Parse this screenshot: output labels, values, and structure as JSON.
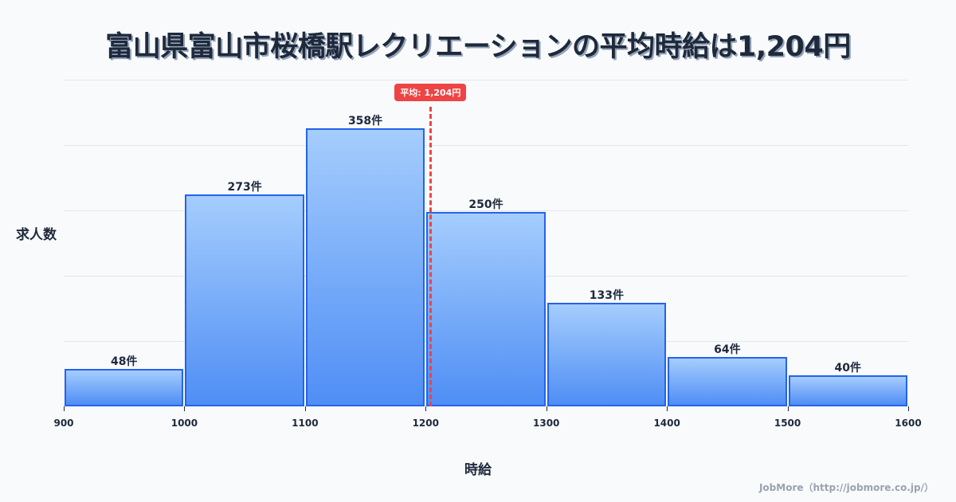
{
  "title": "富山県富山市桜橋駅レクリエーションの平均時給は1,204円",
  "y_axis_label": "求人数",
  "x_axis_label": "時給",
  "mean_badge": "平均: 1,204円",
  "footer": "JobMore（http://jobmore.co.jp/）",
  "colors": {
    "bar_top": "#a5cdfd",
    "bar_bottom": "#4f8ef5",
    "bar_border": "#2563eb",
    "mean_line": "#ef4444",
    "text": "#1e293b",
    "background": "#f8fafc"
  },
  "chart_data": {
    "type": "bar",
    "title": "富山県富山市桜橋駅レクリエーションの平均時給は1,204円",
    "xlabel": "時給",
    "ylabel": "求人数",
    "bins": [
      [
        900,
        1000
      ],
      [
        1000,
        1100
      ],
      [
        1100,
        1200
      ],
      [
        1200,
        1300
      ],
      [
        1300,
        1400
      ],
      [
        1400,
        1500
      ],
      [
        1500,
        1600
      ]
    ],
    "categories": [
      "900-1000",
      "1000-1100",
      "1100-1200",
      "1200-1300",
      "1300-1400",
      "1400-1500",
      "1500-1600"
    ],
    "values": [
      48,
      273,
      358,
      250,
      133,
      64,
      40
    ],
    "value_labels": [
      "48件",
      "273件",
      "358件",
      "250件",
      "133件",
      "64件",
      "40件"
    ],
    "x_ticks": [
      "900",
      "1000",
      "1100",
      "1200",
      "1300",
      "1400",
      "1500",
      "1600"
    ],
    "xlim": [
      900,
      1600
    ],
    "ylim": [
      0,
      420
    ],
    "grid": true,
    "mean": 1204,
    "mean_label": "平均: 1,204円"
  }
}
